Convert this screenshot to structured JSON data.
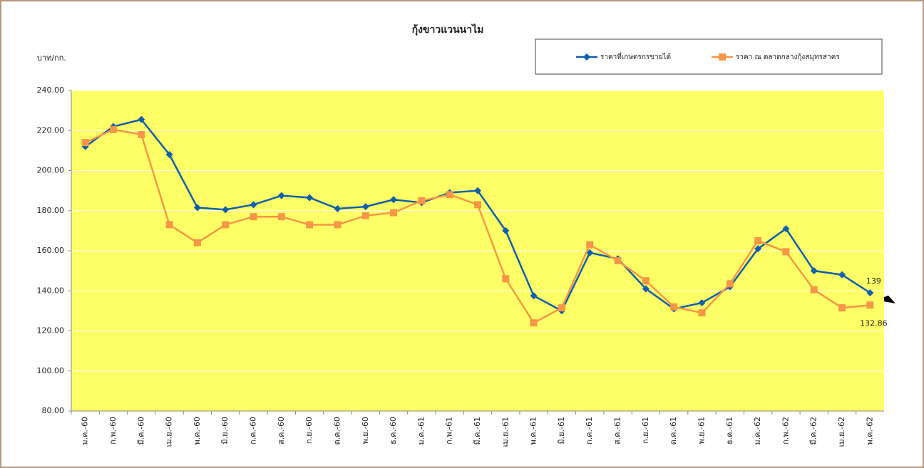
{
  "chart_data": {
    "type": "line",
    "title": "กุ้งขาวแวนนาไม",
    "y_label": "บาท/กก.",
    "categories": [
      "ม.ค.-60",
      "ก.พ.-60",
      "มี.ค.-60",
      "เม.ย.-60",
      "พ.ค.-60",
      "มิ.ย.-60",
      "ก.ค.-60",
      "ส.ค.-60",
      "ก.ย.-60",
      "ต.ค.-60",
      "พ.ย.-60",
      "ธ.ค.-60",
      "ม.ค.-61",
      "ก.พ.-61",
      "มี.ค.-61",
      "เม.ย.-61",
      "พ.ค.-61",
      "มิ.ย.-61",
      "ก.ค.-61",
      "ส.ค.-61",
      "ก.ย.-61",
      "ต.ค.-61",
      "พ.ย.-61",
      "ธ.ค.-61",
      "ม.ค.-62",
      "ก.พ.-62",
      "มี.ค.-62",
      "เม.ย.-62",
      "พ.ค.-62"
    ],
    "series": [
      {
        "name": "ราคาที่เกษตรกรขายได้",
        "color": "#0f5fae",
        "marker": "diamond",
        "values": [
          212,
          222,
          225.5,
          208,
          181.5,
          180.5,
          183,
          187.5,
          186.5,
          181,
          182,
          185.5,
          184,
          189,
          190,
          170,
          137.5,
          130,
          159,
          156,
          141,
          131,
          134,
          142,
          161,
          171,
          150,
          148,
          139
        ],
        "value_labels": [
          null,
          null,
          null,
          null,
          null,
          null,
          null,
          null,
          null,
          null,
          null,
          null,
          null,
          null,
          null,
          null,
          null,
          null,
          null,
          null,
          null,
          null,
          null,
          null,
          null,
          null,
          null,
          null,
          "139"
        ]
      },
      {
        "name": "ราคา ณ ตลาดกลางกุ้งสมุทรสาคร",
        "color": "#f79646",
        "marker": "square",
        "values": [
          214,
          220.5,
          218,
          173,
          164,
          173,
          177,
          177,
          173,
          173,
          177.5,
          179,
          185,
          188,
          183,
          146,
          124,
          131.5,
          163,
          155,
          145,
          132,
          129,
          143.5,
          165,
          159.5,
          140.5,
          131.5,
          132.86
        ],
        "value_labels": [
          null,
          null,
          null,
          null,
          null,
          null,
          null,
          null,
          null,
          null,
          null,
          null,
          null,
          null,
          null,
          null,
          null,
          null,
          null,
          null,
          null,
          null,
          null,
          null,
          null,
          null,
          null,
          null,
          "132.86"
        ]
      }
    ],
    "ylim": [
      80,
      240
    ],
    "yticks": [
      {
        "value": 80,
        "label": "80.00"
      },
      {
        "value": 100,
        "label": "100.00"
      },
      {
        "value": 120,
        "label": "120.00"
      },
      {
        "value": 140,
        "label": "140.00"
      },
      {
        "value": 160,
        "label": "160.00"
      },
      {
        "value": 180,
        "label": "180.00"
      },
      {
        "value": 200,
        "label": "200.00"
      },
      {
        "value": 220,
        "label": "220.00"
      },
      {
        "value": 240,
        "label": "240.00"
      }
    ],
    "grid": true,
    "plot_background": "#ffff66",
    "legend": "top-right"
  }
}
